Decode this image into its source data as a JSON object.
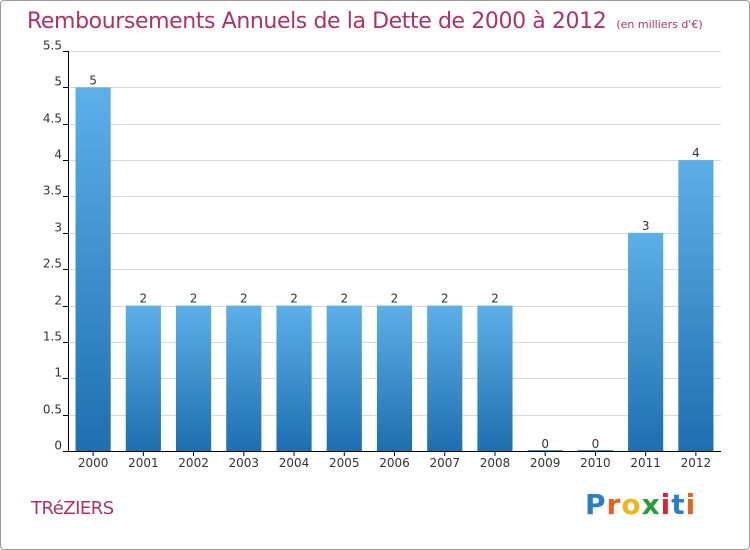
{
  "header": {
    "title": "Remboursements Annuels de la Dette de 2000 à 2012",
    "subtitle": "(en milliers d'€)"
  },
  "place_label": "TRéZIERS",
  "logo": {
    "text": "Proxiti",
    "letter_colors": [
      "#2b7fc9",
      "#e8601c",
      "#f2b41b",
      "#2a9d3b",
      "#d6263a",
      "#2b7fc9",
      "#e8601c"
    ]
  },
  "colors": {
    "title": "#b0306a",
    "bar_top": "#5dafe8",
    "bar_bottom": "#1f6fb0",
    "grid": "#d8d8d8",
    "axis": "#000000"
  },
  "chart_data": {
    "type": "bar",
    "categories": [
      "2000",
      "2001",
      "2002",
      "2003",
      "2004",
      "2005",
      "2006",
      "2007",
      "2008",
      "2009",
      "2010",
      "2011",
      "2012"
    ],
    "values": [
      5,
      2,
      2,
      2,
      2,
      2,
      2,
      2,
      2,
      0,
      0,
      3,
      4
    ],
    "data_labels": [
      "5",
      "2",
      "2",
      "2",
      "2",
      "2",
      "2",
      "2",
      "2",
      "0",
      "0",
      "3",
      "4"
    ],
    "ylim": [
      0,
      5.5
    ],
    "yticks": [
      0,
      0.5,
      1,
      1.5,
      2,
      2.5,
      3,
      3.5,
      4,
      4.5,
      5,
      5.5
    ],
    "ytick_labels": [
      "0",
      "0.5",
      "1",
      "1.5",
      "2",
      "2.5",
      "3",
      "3.5",
      "4",
      "4.5",
      "5",
      "5.5"
    ],
    "grid": true,
    "xlabel": "",
    "ylabel": ""
  }
}
